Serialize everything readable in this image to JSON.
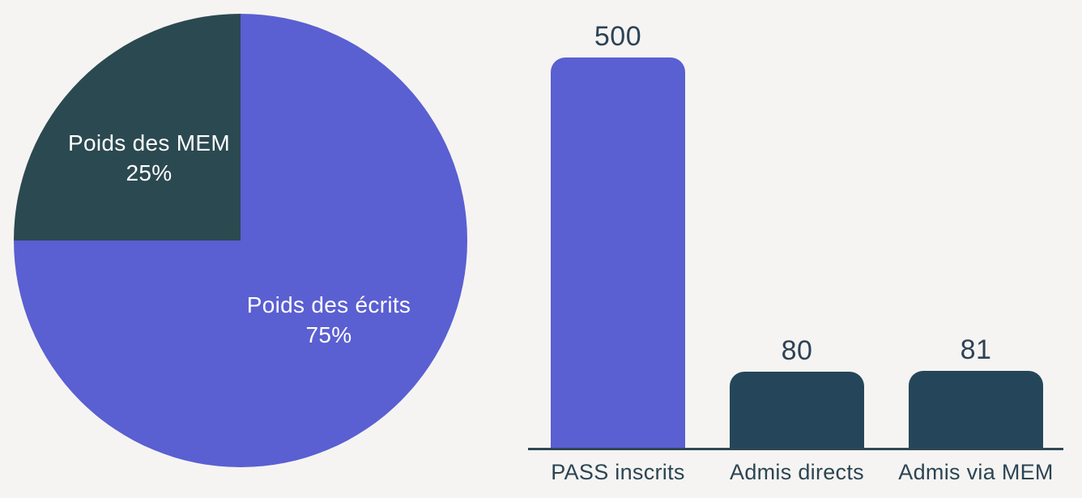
{
  "colors": {
    "background": "#f5f4f2",
    "purple": "#5a5fd2",
    "teal_pie": "#2b4951",
    "teal_bar": "#25465a",
    "text_dark": "#2e4254",
    "text_light": "#ffffff",
    "axis": "#2e4756"
  },
  "chart_data": [
    {
      "type": "pie",
      "title": "",
      "direction": "clockwise",
      "start_angle_deg": 0,
      "labels_inside": true,
      "slices": [
        {
          "label": "Poids des écrits",
          "value": 75,
          "pct_label": "75%",
          "color": "#5a5fd2"
        },
        {
          "label": "Poids des MEM",
          "value": 25,
          "pct_label": "25%",
          "color": "#2b4951"
        }
      ]
    },
    {
      "type": "bar",
      "title": "",
      "categories": [
        "PASS inscrits",
        "Admis directs",
        "Admis via MEM"
      ],
      "values": [
        500,
        80,
        81
      ],
      "value_labels": [
        "500",
        "80",
        "81"
      ],
      "bar_colors": [
        "#5a5fd2",
        "#25465a",
        "#25465a"
      ],
      "xlabel": "",
      "ylabel": "",
      "ylim": [
        0,
        500
      ],
      "grid": false,
      "legend": false,
      "value_labels_position": "above"
    }
  ]
}
